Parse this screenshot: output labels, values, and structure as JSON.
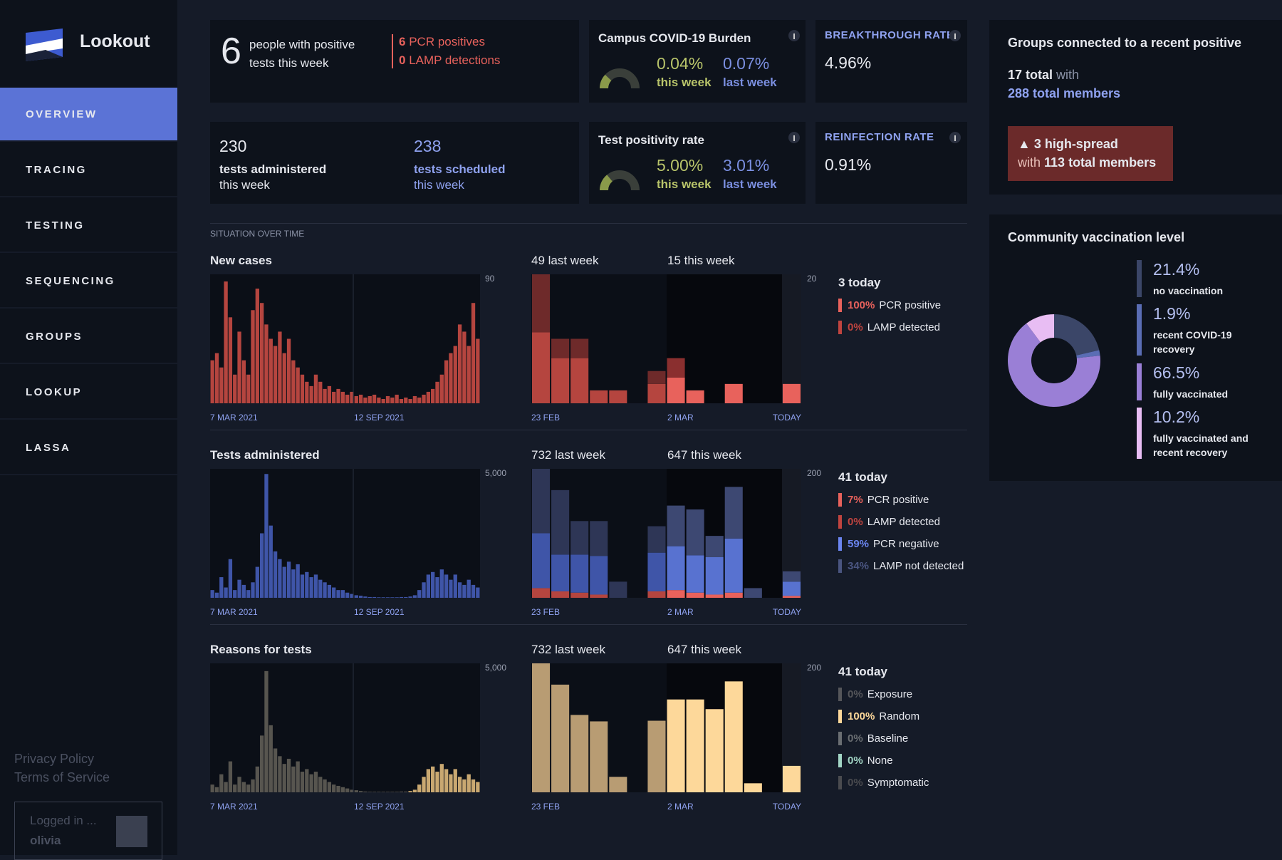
{
  "sidebar": {
    "brand": "Lookout",
    "nav": [
      "OVERVIEW",
      "TRACING",
      "TESTING",
      "SEQUENCING",
      "GROUPS",
      "LOOKUP",
      "LASSA"
    ],
    "links": [
      "Privacy Policy",
      "Terms of Service"
    ],
    "login": {
      "status": "Logged in ...",
      "user": "olivia"
    }
  },
  "positives": {
    "count": 6,
    "label": "people with positive tests this week",
    "pcr": {
      "num": 6,
      "text": "PCR positives"
    },
    "lamp": {
      "num": 0,
      "text": "LAMP detections"
    }
  },
  "burden": {
    "title": "Campus COVID-19 Burden",
    "this": "0.04%",
    "last": "0.07%",
    "this_label": "this week",
    "last_label": "last week"
  },
  "breakthrough": {
    "title": "BREAKTHROUGH RATE",
    "value": "4.96%"
  },
  "tests": {
    "administered": {
      "value": 230,
      "label": "tests administered",
      "sub": "this week"
    },
    "scheduled": {
      "value": 238,
      "label": "tests scheduled",
      "sub": "this week"
    }
  },
  "positivity": {
    "title": "Test positivity rate",
    "this": "5.00%",
    "last": "3.01%",
    "this_label": "this week",
    "last_label": "last week"
  },
  "reinfection": {
    "title": "REINFECTION RATE",
    "value": "0.91%"
  },
  "groups": {
    "title": "Groups connected to a recent positive",
    "total": "17 total",
    "with": "with",
    "members": "288 total members",
    "alert": {
      "count": "▲ 3 high-spread",
      "with": "with",
      "members": "113 total members"
    }
  },
  "vaccination": {
    "title": "Community vaccination level",
    "items": [
      {
        "value": 21.4,
        "label": "21.4%",
        "text": "no vaccination",
        "color": "#3b4668"
      },
      {
        "value": 1.9,
        "label": "1.9%",
        "text": "recent COVID-19 recovery",
        "color": "#5a6db4"
      },
      {
        "value": 66.5,
        "label": "66.5%",
        "text": "fully vaccinated",
        "color": "#9a7fd6"
      },
      {
        "value": 10.2,
        "label": "10.2%",
        "text": "fully vaccinated and recent recovery",
        "color": "#e8bdf3"
      }
    ]
  },
  "section": "SITUATION OVER TIME",
  "charts": [
    {
      "title": "New cases",
      "long": {
        "segments": [
          {
            "color": "#b5453f",
            "values": [
              30,
              35,
              25,
              85,
              60,
              20,
              50,
              30,
              20,
              65,
              80,
              70,
              55,
              45,
              40,
              50,
              35,
              45,
              30,
              25,
              20,
              15,
              12,
              20,
              15,
              10,
              12,
              8,
              10,
              8,
              6,
              8,
              5,
              6,
              4,
              5,
              6,
              4,
              3,
              5,
              4,
              6,
              3,
              4,
              3,
              5,
              4,
              6,
              8,
              10,
              15,
              20,
              30,
              35,
              40,
              55,
              50,
              40,
              70,
              45
            ]
          }
        ],
        "ylim": [
          0,
          90
        ],
        "yticks": [
          90
        ],
        "dates": [
          "7 MAR 2021",
          "12 SEP 2021"
        ]
      },
      "short": {
        "last_label": "49 last week",
        "this_label": "15 this week",
        "segments": [
          {
            "colors": [
              "#b5453f",
              "#e8625c"
            ],
            "values": [
              11,
              7,
              7,
              2,
              2,
              0,
              3,
              4,
              2,
              0,
              3,
              0,
              0,
              3
            ]
          },
          {
            "colors": [
              "#6e2a2a",
              "#8a2f2f"
            ],
            "values": [
              9,
              3,
              3,
              0,
              0,
              0,
              2,
              3,
              0,
              0,
              0,
              0,
              0,
              0
            ]
          }
        ],
        "ylim": [
          0,
          20
        ],
        "yticks": [
          20
        ],
        "dates": [
          "23 FEB",
          "2 MAR",
          "TODAY"
        ]
      },
      "legend": {
        "today": "3 today",
        "items": [
          {
            "pct": "100%",
            "text": "PCR positive",
            "color": "#e8625c"
          },
          {
            "pct": "0%",
            "text": "LAMP detected",
            "color": "#c0443f"
          }
        ]
      }
    },
    {
      "title": "Tests administered",
      "long": {
        "segments": [
          {
            "color": "#3f55a8",
            "values": [
              300,
              200,
              800,
              400,
              1500,
              300,
              700,
              500,
              300,
              600,
              1200,
              2500,
              4800,
              2800,
              1800,
              1500,
              1200,
              1400,
              1100,
              1300,
              900,
              1000,
              800,
              900,
              700,
              600,
              500,
              400,
              300,
              300,
              200,
              150,
              100,
              80,
              50,
              30,
              30,
              20,
              20,
              20,
              20,
              20,
              30,
              30,
              50,
              100,
              300,
              600,
              900,
              1000,
              800,
              1100,
              900,
              700,
              900,
              600,
              500,
              700,
              500,
              400
            ]
          }
        ],
        "ylim": [
          0,
          5000
        ],
        "yticks": [
          {
            "value": 5000,
            "label": "5,000"
          }
        ],
        "dates": [
          "7 MAR 2021",
          "12 SEP 2021"
        ]
      },
      "short": {
        "last_label": "732 last week",
        "this_label": "647 this week",
        "segments": [
          {
            "colors": [
              "#b5453f",
              "#e8625c"
            ],
            "values": [
              15,
              10,
              8,
              5,
              0,
              0,
              10,
              12,
              8,
              5,
              8,
              0,
              0,
              3
            ]
          },
          {
            "colors": [
              "#3f55a8",
              "#5872d0"
            ],
            "values": [
              85,
              57,
              59,
              60,
              0,
              0,
              60,
              68,
              58,
              58,
              84,
              0,
              0,
              22
            ]
          },
          {
            "colors": [
              "#2e3656",
              "#3d4872"
            ],
            "values": [
              100,
              100,
              52,
              54,
              25,
              0,
              41,
              63,
              71,
              33,
              80,
              15,
              0,
              16
            ]
          }
        ],
        "ylim": [
          0,
          200
        ],
        "yticks": [
          200
        ],
        "dates": [
          "23 FEB",
          "2 MAR",
          "TODAY"
        ]
      },
      "legend": {
        "today": "41 today",
        "items": [
          {
            "pct": "7%",
            "text": "PCR positive",
            "color": "#e8625c"
          },
          {
            "pct": "0%",
            "text": "LAMP detected",
            "color": "#c0443f"
          },
          {
            "pct": "59%",
            "text": "PCR negative",
            "color": "#6b85f0"
          },
          {
            "pct": "34%",
            "text": "LAMP not detected",
            "color": "#4a5580"
          }
        ]
      }
    },
    {
      "title": "Reasons for tests",
      "long": {
        "segments": [
          {
            "color": "#57554f",
            "values": [
              300,
              200,
              700,
              400,
              1200,
              300,
              600,
              400,
              300,
              500,
              1000,
              2200,
              4700,
              2600,
              1700,
              1400,
              1100,
              1300,
              1000,
              1200,
              800,
              900,
              700,
              800,
              600,
              500,
              400,
              300,
              250,
              200,
              150,
              100,
              80,
              50,
              30,
              20,
              20,
              20,
              20,
              20,
              20,
              20,
              30,
              30,
              0,
              0,
              0,
              0,
              0,
              0,
              0,
              0,
              0,
              0,
              0,
              0,
              0,
              0,
              0,
              0
            ]
          },
          {
            "color": "#c9a871",
            "values": [
              0,
              0,
              0,
              0,
              0,
              0,
              0,
              0,
              0,
              0,
              0,
              0,
              0,
              0,
              0,
              0,
              0,
              0,
              0,
              0,
              0,
              0,
              0,
              0,
              0,
              0,
              0,
              0,
              0,
              0,
              0,
              0,
              0,
              0,
              0,
              0,
              0,
              0,
              0,
              0,
              0,
              0,
              0,
              0,
              50,
              100,
              300,
              600,
              900,
              1000,
              800,
              1100,
              900,
              700,
              900,
              600,
              500,
              700,
              500,
              400
            ]
          }
        ],
        "ylim": [
          0,
          5000
        ],
        "yticks": [
          {
            "value": 5000,
            "label": "5,000"
          }
        ],
        "dates": [
          "7 MAR 2021",
          "12 SEP 2021"
        ]
      },
      "short": {
        "last_label": "732 last week",
        "this_label": "647 this week",
        "segments": [
          {
            "colors": [
              "#b89c73",
              "#fdd89a"
            ],
            "values": [
              200,
              167,
              120,
              110,
              24,
              0,
              111,
              144,
              144,
              129,
              172,
              14,
              0,
              41
            ]
          }
        ],
        "ylim": [
          0,
          200
        ],
        "yticks": [
          200
        ],
        "dates": [
          "23 FEB",
          "2 MAR",
          "TODAY"
        ]
      },
      "legend": {
        "today": "41 today",
        "items": [
          {
            "pct": "0%",
            "text": "Exposure",
            "color": "#55565a"
          },
          {
            "pct": "100%",
            "text": "Random",
            "color": "#fdd89a"
          },
          {
            "pct": "0%",
            "text": "Baseline",
            "color": "#6a6e72"
          },
          {
            "pct": "0%",
            "text": "None",
            "color": "#a3d6c6"
          },
          {
            "pct": "0%",
            "text": "Symptomatic",
            "color": "#4a4b4f"
          }
        ]
      }
    }
  ]
}
